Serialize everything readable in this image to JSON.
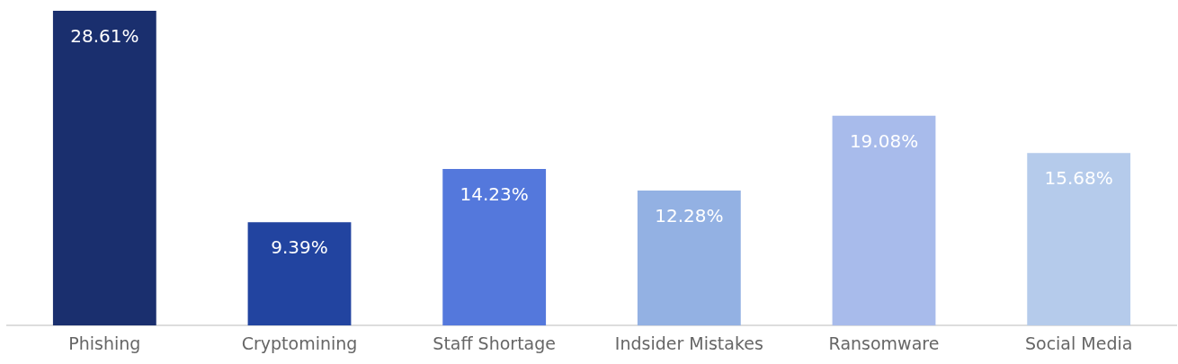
{
  "chart_data": {
    "type": "bar",
    "categories": [
      "Phishing",
      "Cryptomining",
      "Staff Shortage",
      "Indsider Mistakes",
      "Ransomware",
      "Social Media"
    ],
    "values": [
      28.61,
      9.39,
      14.23,
      12.28,
      19.08,
      15.68
    ],
    "colors": [
      "#1a2f6e",
      "#2244a0",
      "#5478dc",
      "#93b1e3",
      "#a8bbeb",
      "#b5cbeb"
    ],
    "value_labels": [
      "28.61%",
      "9.39%",
      "14.23%",
      "12.28%",
      "19.08%",
      "15.68%"
    ],
    "grid": false,
    "legend": false
  }
}
